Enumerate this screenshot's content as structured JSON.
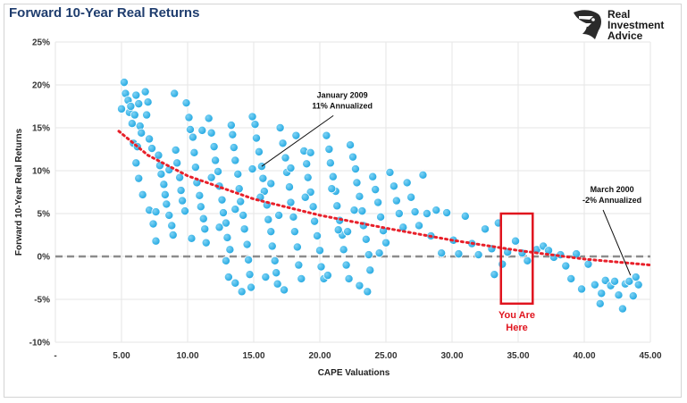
{
  "header": {
    "title": "Forward 10-Year Real Returns"
  },
  "logo": {
    "line1": "Real",
    "line2": "Investment",
    "line3": "Advice",
    "icon": "eagle-head-icon"
  },
  "colors": {
    "points": "#1ea6e0",
    "trend": "#e8202a",
    "zero_line": "#8c8c8c",
    "title": "#1f3d6e",
    "highlight": "#e0141e"
  },
  "chart_data": {
    "type": "scatter",
    "title": "Forward 10-Year Real Returns",
    "xlabel": "CAPE Valuations",
    "ylabel": "Forward 10-Year Real Returns",
    "xlim": [
      0,
      45
    ],
    "ylim": [
      -10,
      25
    ],
    "x_ticks": [
      0,
      5,
      10,
      15,
      20,
      25,
      30,
      35,
      40,
      45
    ],
    "x_tick_labels": [
      "-",
      "5.00",
      "10.00",
      "15.00",
      "20.00",
      "25.00",
      "30.00",
      "35.00",
      "40.00",
      "45.00"
    ],
    "y_ticks": [
      -10,
      -5,
      0,
      5,
      10,
      15,
      20,
      25
    ],
    "y_tick_labels": [
      "-10%",
      "-5%",
      "0%",
      "5%",
      "10%",
      "15%",
      "20%",
      "25%"
    ],
    "grid": true,
    "zero_line": 0,
    "trendline": {
      "type": "power",
      "x_start": 4.8,
      "x_end": 45,
      "points": [
        [
          4.8,
          14.6
        ],
        [
          7,
          11.8
        ],
        [
          10,
          9.4
        ],
        [
          15,
          6.7
        ],
        [
          20,
          4.8
        ],
        [
          25,
          3.3
        ],
        [
          30,
          1.9
        ],
        [
          35,
          0.7
        ],
        [
          40,
          -0.3
        ],
        [
          45,
          -1.0
        ]
      ]
    },
    "annotations": [
      {
        "lines": [
          "January 2009",
          "11% Annualized"
        ],
        "x": 15.6,
        "y": 10.5,
        "label_x": 21.7,
        "label_y": 18.5
      },
      {
        "lines": [
          "March 2000",
          "-2% Annualized"
        ],
        "x": 43.5,
        "y": -2.2,
        "label_x": 42.1,
        "label_y": 7.5
      }
    ],
    "highlight": {
      "label_lines": [
        "You Are",
        "Here"
      ],
      "x_range": [
        33.7,
        36.1
      ],
      "y_range": [
        -5.5,
        5
      ]
    },
    "series": [
      {
        "name": "",
        "points": [
          [
            5.0,
            17.2
          ],
          [
            5.2,
            20.3
          ],
          [
            5.3,
            19.0
          ],
          [
            5.5,
            18.2
          ],
          [
            5.6,
            16.8
          ],
          [
            5.7,
            17.5
          ],
          [
            5.8,
            15.5
          ],
          [
            6.0,
            16.5
          ],
          [
            6.1,
            18.8
          ],
          [
            6.3,
            17.8
          ],
          [
            6.4,
            15.2
          ],
          [
            6.5,
            14.4
          ],
          [
            5.9,
            13.2
          ],
          [
            6.2,
            12.8
          ],
          [
            6.8,
            19.2
          ],
          [
            7.0,
            18.0
          ],
          [
            6.9,
            16.5
          ],
          [
            7.1,
            13.7
          ],
          [
            7.3,
            12.6
          ],
          [
            6.1,
            10.9
          ],
          [
            6.3,
            9.1
          ],
          [
            6.6,
            7.2
          ],
          [
            7.1,
            5.4
          ],
          [
            7.6,
            5.2
          ],
          [
            7.4,
            3.8
          ],
          [
            7.6,
            1.8
          ],
          [
            7.8,
            11.8
          ],
          [
            7.9,
            10.6
          ],
          [
            8.0,
            9.6
          ],
          [
            8.2,
            8.4
          ],
          [
            8.3,
            7.2
          ],
          [
            8.4,
            6.1
          ],
          [
            8.6,
            4.8
          ],
          [
            8.8,
            3.6
          ],
          [
            8.9,
            2.5
          ],
          [
            9.0,
            19.0
          ],
          [
            9.2,
            10.9
          ],
          [
            9.4,
            9.2
          ],
          [
            9.5,
            7.7
          ],
          [
            9.6,
            6.5
          ],
          [
            9.8,
            5.3
          ],
          [
            9.9,
            17.9
          ],
          [
            10.1,
            16.2
          ],
          [
            10.2,
            14.8
          ],
          [
            10.4,
            13.9
          ],
          [
            10.5,
            12.1
          ],
          [
            10.6,
            10.4
          ],
          [
            10.7,
            8.6
          ],
          [
            10.9,
            7.1
          ],
          [
            11.0,
            5.8
          ],
          [
            11.2,
            4.4
          ],
          [
            11.3,
            3.2
          ],
          [
            11.4,
            1.6
          ],
          [
            11.6,
            16.1
          ],
          [
            11.8,
            14.4
          ],
          [
            12.0,
            12.8
          ],
          [
            12.1,
            11.2
          ],
          [
            12.3,
            9.9
          ],
          [
            12.4,
            8.2
          ],
          [
            12.6,
            6.6
          ],
          [
            12.7,
            5.1
          ],
          [
            12.9,
            3.9
          ],
          [
            13.0,
            2.2
          ],
          [
            13.2,
            0.8
          ],
          [
            13.4,
            14.2
          ],
          [
            13.5,
            12.7
          ],
          [
            13.6,
            11.2
          ],
          [
            13.8,
            9.6
          ],
          [
            13.9,
            7.9
          ],
          [
            14.0,
            6.4
          ],
          [
            14.2,
            4.8
          ],
          [
            14.3,
            3.2
          ],
          [
            14.5,
            1.4
          ],
          [
            14.6,
            -0.4
          ],
          [
            14.7,
            -2.1
          ],
          [
            14.8,
            -3.6
          ],
          [
            13.1,
            -2.4
          ],
          [
            13.6,
            -3.1
          ],
          [
            14.1,
            -4.1
          ],
          [
            14.9,
            16.3
          ],
          [
            15.1,
            15.4
          ],
          [
            15.2,
            13.8
          ],
          [
            15.4,
            12.2
          ],
          [
            15.6,
            10.5
          ],
          [
            15.7,
            9.1
          ],
          [
            15.8,
            7.6
          ],
          [
            16.0,
            6.0
          ],
          [
            16.1,
            4.3
          ],
          [
            16.3,
            2.9
          ],
          [
            16.4,
            1.2
          ],
          [
            16.6,
            -0.5
          ],
          [
            16.7,
            -1.9
          ],
          [
            16.8,
            -3.2
          ],
          [
            17.0,
            15.0
          ],
          [
            17.2,
            13.2
          ],
          [
            17.4,
            11.5
          ],
          [
            17.5,
            9.8
          ],
          [
            17.7,
            8.1
          ],
          [
            17.8,
            6.3
          ],
          [
            18.0,
            4.6
          ],
          [
            18.1,
            2.9
          ],
          [
            18.3,
            1.1
          ],
          [
            18.4,
            -1.0
          ],
          [
            18.6,
            -2.6
          ],
          [
            18.8,
            12.3
          ],
          [
            19.0,
            10.8
          ],
          [
            19.1,
            9.2
          ],
          [
            19.3,
            7.5
          ],
          [
            19.5,
            5.8
          ],
          [
            19.6,
            4.1
          ],
          [
            19.8,
            2.4
          ],
          [
            20.0,
            0.7
          ],
          [
            20.1,
            -1.2
          ],
          [
            20.3,
            -2.6
          ],
          [
            20.5,
            14.1
          ],
          [
            20.7,
            12.5
          ],
          [
            20.8,
            10.9
          ],
          [
            21.0,
            9.3
          ],
          [
            21.2,
            7.6
          ],
          [
            21.3,
            5.9
          ],
          [
            21.5,
            4.2
          ],
          [
            21.7,
            2.5
          ],
          [
            21.8,
            0.8
          ],
          [
            22.0,
            -1.0
          ],
          [
            22.2,
            -2.6
          ],
          [
            22.3,
            13.0
          ],
          [
            22.5,
            11.6
          ],
          [
            22.7,
            10.2
          ],
          [
            22.8,
            8.6
          ],
          [
            23.0,
            7.0
          ],
          [
            23.2,
            5.3
          ],
          [
            23.3,
            3.6
          ],
          [
            23.5,
            2.0
          ],
          [
            23.7,
            0.2
          ],
          [
            23.8,
            -1.6
          ],
          [
            23.0,
            -3.4
          ],
          [
            23.6,
            -4.1
          ],
          [
            24.0,
            9.3
          ],
          [
            24.2,
            7.8
          ],
          [
            24.4,
            6.3
          ],
          [
            24.6,
            4.6
          ],
          [
            24.8,
            3.0
          ],
          [
            25.0,
            1.6
          ],
          [
            25.3,
            9.8
          ],
          [
            25.6,
            8.2
          ],
          [
            25.8,
            6.5
          ],
          [
            26.0,
            5.0
          ],
          [
            26.3,
            3.4
          ],
          [
            26.6,
            8.6
          ],
          [
            26.9,
            6.9
          ],
          [
            27.2,
            5.2
          ],
          [
            27.5,
            3.6
          ],
          [
            27.8,
            9.5
          ],
          [
            28.1,
            5.0
          ],
          [
            28.4,
            2.4
          ],
          [
            28.8,
            5.4
          ],
          [
            29.2,
            0.4
          ],
          [
            29.6,
            5.1
          ],
          [
            30.1,
            1.9
          ],
          [
            30.5,
            0.3
          ],
          [
            31.0,
            4.7
          ],
          [
            31.5,
            1.5
          ],
          [
            32.0,
            0.2
          ],
          [
            32.5,
            3.2
          ],
          [
            33.0,
            0.9
          ],
          [
            33.5,
            3.9
          ],
          [
            33.8,
            -0.9
          ],
          [
            33.2,
            -2.1
          ],
          [
            34.2,
            0.5
          ],
          [
            34.8,
            1.8
          ],
          [
            35.3,
            0.4
          ],
          [
            35.7,
            -0.5
          ],
          [
            36.4,
            0.8
          ],
          [
            36.9,
            1.2
          ],
          [
            37.3,
            0.7
          ],
          [
            37.7,
            -0.1
          ],
          [
            38.2,
            0.2
          ],
          [
            38.6,
            -1.1
          ],
          [
            39.0,
            -2.6
          ],
          [
            39.4,
            0.3
          ],
          [
            39.8,
            -3.8
          ],
          [
            40.3,
            -0.9
          ],
          [
            40.8,
            -3.3
          ],
          [
            41.3,
            -4.3
          ],
          [
            41.6,
            -2.8
          ],
          [
            42.0,
            -3.4
          ],
          [
            42.3,
            -2.9
          ],
          [
            42.6,
            -4.5
          ],
          [
            42.9,
            -6.1
          ],
          [
            43.1,
            -3.2
          ],
          [
            43.4,
            -2.9
          ],
          [
            43.7,
            -4.6
          ],
          [
            44.1,
            -3.3
          ],
          [
            43.9,
            -2.4
          ],
          [
            41.2,
            -5.5
          ],
          [
            12.4,
            3.4
          ],
          [
            15.5,
            6.9
          ],
          [
            17.8,
            10.3
          ],
          [
            19.3,
            12.1
          ],
          [
            21.4,
            3.1
          ],
          [
            9.1,
            12.4
          ],
          [
            11.8,
            9.2
          ],
          [
            16.9,
            4.8
          ],
          [
            18.9,
            6.9
          ],
          [
            22.6,
            5.4
          ],
          [
            10.3,
            2.1
          ],
          [
            12.9,
            -0.5
          ],
          [
            15.9,
            -2.4
          ],
          [
            17.3,
            -3.9
          ],
          [
            20.6,
            -2.2
          ],
          [
            13.6,
            5.5
          ],
          [
            14.9,
            10.2
          ],
          [
            18.2,
            14.1
          ],
          [
            16.3,
            8.5
          ],
          [
            20.9,
            7.9
          ],
          [
            22.1,
            2.9
          ],
          [
            24.5,
            0.4
          ],
          [
            11.1,
            14.7
          ],
          [
            13.3,
            15.3
          ],
          [
            8.6,
            10.1
          ]
        ]
      }
    ]
  }
}
